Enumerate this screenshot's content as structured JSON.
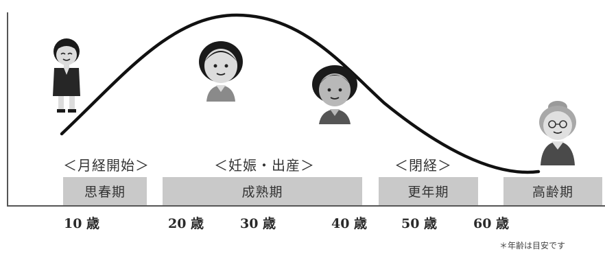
{
  "stages": [
    {
      "id": "puberty",
      "label": "思春期"
    },
    {
      "id": "maturity",
      "label": "成熟期"
    },
    {
      "id": "menopause",
      "label": "更年期"
    },
    {
      "id": "senior",
      "label": "高齢期"
    }
  ],
  "events": [
    {
      "id": "menarche",
      "label": "＜月経開始＞"
    },
    {
      "id": "pregnancy",
      "label": "＜妊娠・出産＞"
    },
    {
      "id": "menopause-event",
      "label": "＜閉経＞"
    }
  ],
  "ages": [
    "10 歳",
    "20 歳",
    "30 歳",
    "40 歳",
    "50 歳",
    "60 歳"
  ],
  "footnote": "＊年齢は目安です",
  "colors": {
    "curve": "#111111",
    "stage_box": "#c9c9c9",
    "axis": "#555555",
    "skin": "#d9d9d9",
    "hair": "#1a1a1a",
    "clothing": "#3a3a3a"
  },
  "figures": [
    {
      "id": "girl-figure",
      "icon": "schoolgirl-icon"
    },
    {
      "id": "young-woman-figure",
      "icon": "young-woman-icon"
    },
    {
      "id": "middle-aged-woman-figure",
      "icon": "middle-aged-woman-icon"
    },
    {
      "id": "elderly-woman-figure",
      "icon": "elderly-woman-icon"
    }
  ]
}
